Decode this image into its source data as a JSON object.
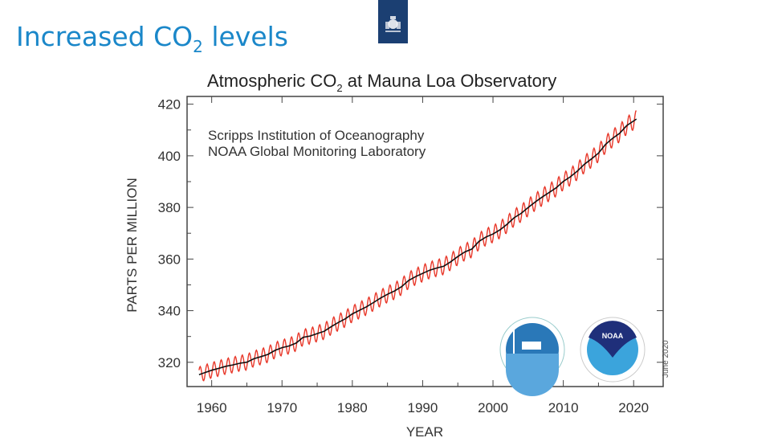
{
  "slide": {
    "title_prefix": "Increased CO",
    "title_sub": "2",
    "title_suffix": " levels"
  },
  "emblem": {
    "name": "coat-of-arms-logo",
    "color": "#1b3f72"
  },
  "chart_data": {
    "type": "line",
    "title_prefix": "Atmospheric CO",
    "title_sub": "2",
    "title_suffix": " at Mauna Loa Observatory",
    "xlabel": "YEAR",
    "ylabel": "PARTS PER MILLION",
    "xlim": [
      1956.5,
      2024.2
    ],
    "ylim": [
      310.6,
      423
    ],
    "xticks": [
      1960,
      1970,
      1980,
      1990,
      2000,
      2010,
      2020
    ],
    "yticks": [
      320,
      340,
      360,
      380,
      400,
      420
    ],
    "grid": false,
    "annotations": [
      "Scripps Institution of Oceanography",
      "NOAA Global Monitoring Laboratory"
    ],
    "date_note": "June 2020",
    "series": [
      {
        "kind": "annual-trend",
        "color": "#111111",
        "x": [
          1958.2,
          1959,
          1960,
          1961,
          1962,
          1963,
          1964,
          1965,
          1966,
          1967,
          1968,
          1969,
          1970,
          1971,
          1972,
          1973,
          1974,
          1975,
          1976,
          1977,
          1978,
          1979,
          1980,
          1981,
          1982,
          1983,
          1984,
          1985,
          1986,
          1987,
          1988,
          1989,
          1990,
          1991,
          1992,
          1993,
          1994,
          1995,
          1996,
          1997,
          1998,
          1999,
          2000,
          2001,
          2002,
          2003,
          2004,
          2005,
          2006,
          2007,
          2008,
          2009,
          2010,
          2011,
          2012,
          2013,
          2014,
          2015,
          2016,
          2017,
          2018,
          2019,
          2020.4
        ],
        "y": [
          315.2,
          315.98,
          316.91,
          317.64,
          318.45,
          318.99,
          319.62,
          320.04,
          321.37,
          322.18,
          323.05,
          324.62,
          325.68,
          326.32,
          327.46,
          329.68,
          330.19,
          331.13,
          332.03,
          333.84,
          335.41,
          336.84,
          338.76,
          340.12,
          341.48,
          343.15,
          344.87,
          346.35,
          347.61,
          349.31,
          351.69,
          353.2,
          354.45,
          355.7,
          356.54,
          357.21,
          358.96,
          360.97,
          362.74,
          363.88,
          366.84,
          368.54,
          369.71,
          371.32,
          373.45,
          375.98,
          377.7,
          379.98,
          382.09,
          384.02,
          385.83,
          387.64,
          390.1,
          391.85,
          394.06,
          396.74,
          398.81,
          401.01,
          404.41,
          406.76,
          408.72,
          411.66,
          414.24
        ]
      },
      {
        "kind": "monthly",
        "color": "#e8382a",
        "seasonal_amplitude_ppm": [
          3.0,
          3.4
        ]
      }
    ]
  },
  "logos": [
    {
      "name": "scripps-logo",
      "color": "#2a78b8"
    },
    {
      "name": "noaa-logo",
      "color": "#1f2f7a",
      "text": "NOAA"
    }
  ]
}
